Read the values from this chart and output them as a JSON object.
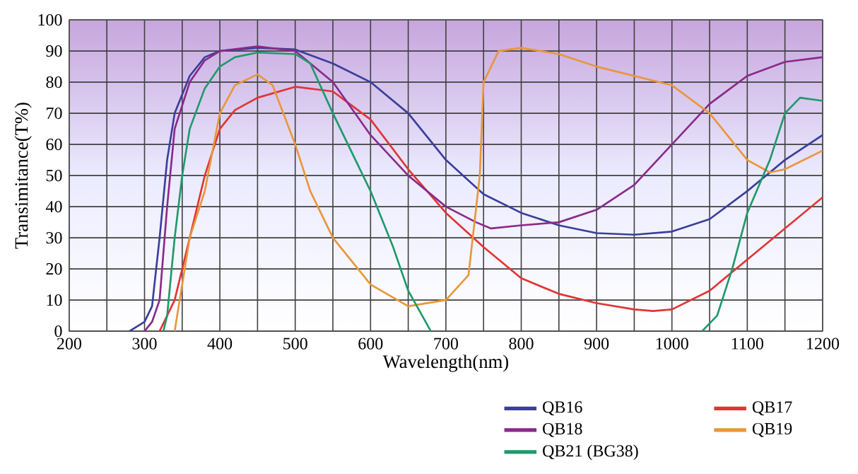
{
  "chart_data": {
    "type": "line",
    "xlabel": "Wavelength(nm)",
    "ylabel": "Transimitance(T%)",
    "xlim": [
      200,
      1200
    ],
    "ylim": [
      0,
      100
    ],
    "xticks": [
      200,
      {
        "value": 250,
        "label": null
      },
      300,
      {
        "value": 350,
        "label": null
      },
      400,
      {
        "value": 450,
        "label": null
      },
      500,
      {
        "value": 550,
        "label": null
      },
      600,
      {
        "value": 650,
        "label": null
      },
      700,
      {
        "value": 750,
        "label": null
      },
      800,
      {
        "value": 850,
        "label": null
      },
      900,
      {
        "value": 950,
        "label": null
      },
      1000,
      {
        "value": 1050,
        "label": null
      },
      1100,
      {
        "value": 1150,
        "label": null
      },
      1200
    ],
    "yticks": [
      0,
      10,
      20,
      30,
      40,
      50,
      60,
      70,
      80,
      90,
      100
    ],
    "grid": true,
    "legend": "bottom",
    "marker": "none",
    "line_style": "solid",
    "series": [
      {
        "name": "QB16",
        "color": "#3a3f9a",
        "x": [
          280,
          300,
          310,
          320,
          330,
          340,
          360,
          380,
          400,
          450,
          500,
          550,
          600,
          650,
          700,
          750,
          800,
          850,
          900,
          950,
          1000,
          1050,
          1100,
          1150,
          1200
        ],
        "values": [
          0,
          3,
          8,
          30,
          55,
          70,
          82,
          88,
          90,
          91,
          90.5,
          86,
          80,
          70,
          55,
          44,
          38,
          34,
          31.5,
          31,
          32,
          36,
          45,
          55,
          63
        ]
      },
      {
        "name": "QB17",
        "color": "#e03535",
        "x": [
          320,
          340,
          360,
          380,
          400,
          420,
          450,
          500,
          550,
          600,
          650,
          700,
          750,
          800,
          850,
          900,
          950,
          975,
          1000,
          1050,
          1100,
          1150,
          1200
        ],
        "values": [
          0,
          10,
          30,
          50,
          65,
          71,
          75,
          78.5,
          77,
          68,
          52,
          38,
          27,
          17,
          12,
          9,
          7,
          6.5,
          7,
          13,
          23,
          33,
          43
        ]
      },
      {
        "name": "QB18",
        "color": "#8a2a8a",
        "x": [
          300,
          310,
          320,
          330,
          340,
          360,
          380,
          400,
          450,
          500,
          550,
          600,
          650,
          700,
          740,
          760,
          800,
          850,
          900,
          950,
          1000,
          1050,
          1100,
          1150,
          1200
        ],
        "values": [
          0,
          3,
          10,
          40,
          65,
          80,
          87,
          90,
          91.5,
          90,
          80,
          63,
          50,
          40,
          35,
          33,
          34,
          35,
          39,
          47,
          60,
          73,
          82,
          86.5,
          88
        ]
      },
      {
        "name": "QB19",
        "color": "#e8973a",
        "x": [
          340,
          350,
          360,
          380,
          400,
          420,
          450,
          470,
          500,
          520,
          550,
          600,
          650,
          700,
          730,
          745,
          750,
          770,
          800,
          850,
          900,
          1000,
          1050,
          1100,
          1130,
          1150,
          1200
        ],
        "values": [
          0,
          15,
          30,
          45,
          70,
          79,
          82.5,
          79,
          60,
          45,
          30,
          15,
          8,
          10,
          18,
          50,
          80,
          90,
          91,
          89,
          85,
          79,
          70,
          55,
          51,
          52,
          58
        ]
      },
      {
        "name": "QB21 (BG38)",
        "color": "#1f9a6a",
        "x": [
          325,
          330,
          340,
          350,
          360,
          380,
          400,
          420,
          450,
          500,
          520,
          550,
          600,
          630,
          650,
          680,
          800,
          1040,
          1060,
          1080,
          1100,
          1130,
          1150,
          1170,
          1200
        ],
        "values": [
          0,
          5,
          30,
          50,
          65,
          78,
          85,
          88,
          89.5,
          89,
          86,
          70,
          45,
          27,
          13,
          0,
          null,
          0,
          5,
          20,
          38,
          55,
          70,
          75,
          74
        ]
      }
    ]
  }
}
